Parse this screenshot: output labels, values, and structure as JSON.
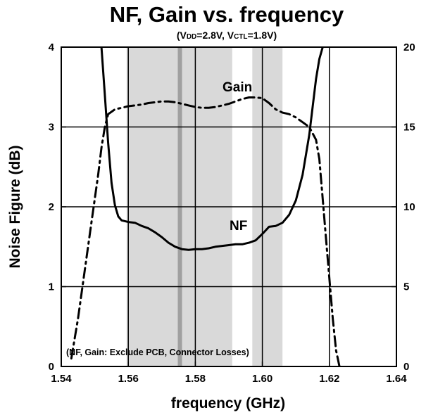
{
  "chart_data": {
    "type": "line",
    "title": "NF, Gain vs. frequency",
    "subtitle": {
      "open": "(V",
      "vdd_sub": "DD",
      "vdd_val": "=2.8V, V",
      "vctl_sub": "CTL",
      "vctl_val": "=1.8V)"
    },
    "xlabel": "frequency (GHz)",
    "ylabel": "Noise Figure (dB)",
    "xlim": [
      1.54,
      1.64
    ],
    "ylim": [
      0,
      4
    ],
    "y2lim": [
      0,
      20
    ],
    "x_ticks": [
      "1.54",
      "1.56",
      "1.58",
      "1.60",
      "1.62",
      "1.64"
    ],
    "y_ticks": [
      "0",
      "1",
      "2",
      "3",
      "4"
    ],
    "y2_ticks": [
      "0",
      "5",
      "10",
      "15",
      "20"
    ],
    "annotation": "(NF, Gain: Exclude PCB, Connector Losses)",
    "shaded_bands": [
      {
        "x0": 1.5595,
        "x1": 1.591,
        "color": "#d9d9d9"
      },
      {
        "x0": 1.597,
        "x1": 1.606,
        "color": "#d9d9d9"
      }
    ],
    "marker_lines": [
      {
        "x": 1.5754,
        "color": "#a0a0a0"
      },
      {
        "x": 1.56,
        "color": "#000000"
      },
      {
        "x": 1.58,
        "color": "#000000"
      },
      {
        "x": 1.6,
        "color": "#000000"
      },
      {
        "x": 1.62,
        "color": "#000000"
      }
    ],
    "series": [
      {
        "name": "NF",
        "axis": "left",
        "style": "solid",
        "x": [
          1.552,
          1.553,
          1.554,
          1.555,
          1.556,
          1.557,
          1.558,
          1.559,
          1.56,
          1.562,
          1.564,
          1.566,
          1.568,
          1.57,
          1.572,
          1.574,
          1.576,
          1.578,
          1.58,
          1.582,
          1.584,
          1.586,
          1.588,
          1.59,
          1.592,
          1.594,
          1.596,
          1.598,
          1.6,
          1.602,
          1.604,
          1.606,
          1.608,
          1.61,
          1.612,
          1.614,
          1.615,
          1.616,
          1.617,
          1.618
        ],
        "y": [
          4.0,
          3.4,
          2.8,
          2.3,
          2.02,
          1.88,
          1.83,
          1.82,
          1.81,
          1.8,
          1.76,
          1.73,
          1.68,
          1.62,
          1.55,
          1.5,
          1.47,
          1.46,
          1.47,
          1.47,
          1.48,
          1.5,
          1.51,
          1.52,
          1.53,
          1.53,
          1.55,
          1.58,
          1.66,
          1.75,
          1.76,
          1.8,
          1.9,
          2.08,
          2.4,
          2.9,
          3.25,
          3.6,
          3.85,
          4.0
        ]
      },
      {
        "name": "Gain",
        "axis": "right",
        "style": "dash-dot",
        "x": [
          1.543,
          1.545,
          1.547,
          1.549,
          1.551,
          1.552,
          1.553,
          1.554,
          1.556,
          1.558,
          1.56,
          1.562,
          1.564,
          1.566,
          1.568,
          1.57,
          1.572,
          1.574,
          1.576,
          1.578,
          1.58,
          1.582,
          1.584,
          1.586,
          1.588,
          1.59,
          1.592,
          1.594,
          1.596,
          1.598,
          1.6,
          1.602,
          1.604,
          1.606,
          1.608,
          1.61,
          1.612,
          1.614,
          1.615,
          1.616,
          1.617,
          1.618,
          1.619,
          1.62,
          1.621,
          1.622,
          1.623
        ],
        "y": [
          0.5,
          3.0,
          6.0,
          9.0,
          12.0,
          13.7,
          15.0,
          15.8,
          16.1,
          16.2,
          16.3,
          16.35,
          16.4,
          16.5,
          16.55,
          16.6,
          16.6,
          16.55,
          16.45,
          16.35,
          16.25,
          16.2,
          16.2,
          16.25,
          16.35,
          16.45,
          16.6,
          16.75,
          16.85,
          16.85,
          16.8,
          16.5,
          16.1,
          15.9,
          15.8,
          15.6,
          15.3,
          15.0,
          14.6,
          14.2,
          13.0,
          10.5,
          8.0,
          5.5,
          3.0,
          1.0,
          0.0
        ]
      }
    ],
    "series_labels": [
      "Gain",
      "NF"
    ],
    "grid": {
      "horizontal": true,
      "vertical": false
    }
  },
  "colors": {
    "band": "#d9d9d9",
    "gps_marker": "#a0a0a0",
    "line": "#000000"
  }
}
